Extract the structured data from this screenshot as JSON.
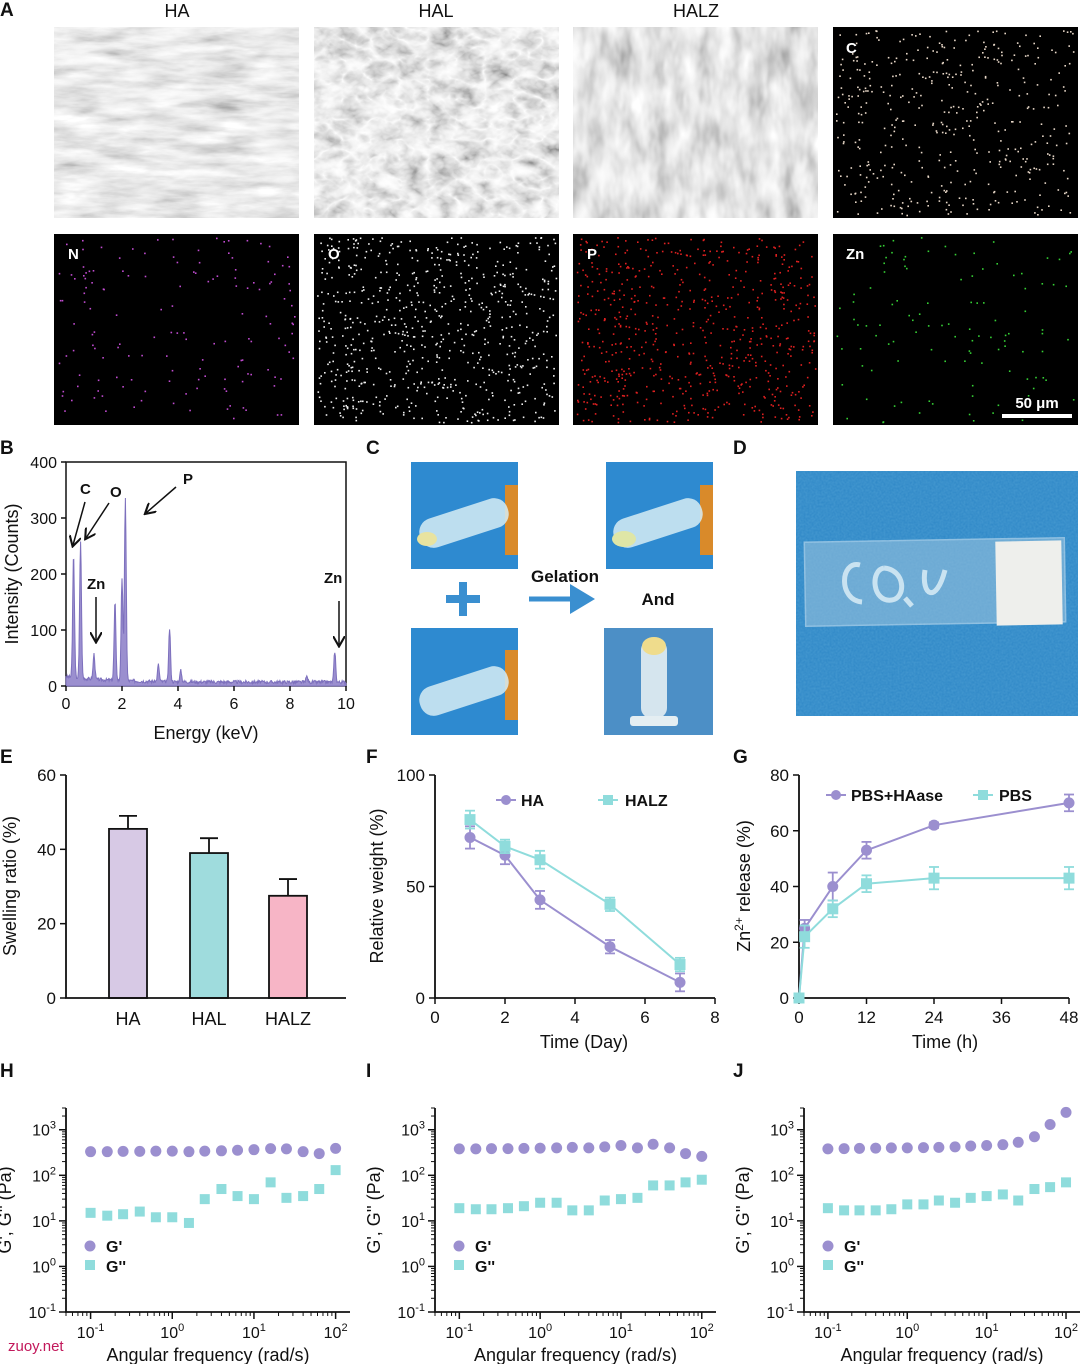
{
  "panel_letters": [
    "A",
    "B",
    "C",
    "D",
    "E",
    "F",
    "G",
    "H",
    "I",
    "J"
  ],
  "sem": {
    "col_titles": [
      "HA",
      "HAL",
      "HALZ"
    ],
    "map_labels": [
      "C",
      "N",
      "O",
      "P",
      "Zn"
    ],
    "scale_bar": "50 μm"
  },
  "colors": {
    "purple": "#9b8fcf",
    "teal": "#8fdcdc",
    "pink": "#f5b7c8",
    "bar_HA": "#d7c9e5",
    "bar_HAL": "#9fdcdd",
    "bar_HALZ": "#f7b5c6",
    "blue_bg": "#2d86c6"
  },
  "photo_c": {
    "arrow_text": "Gelation",
    "and_text": "And"
  },
  "watermark": "zuoy.net",
  "chart_data": [
    {
      "panel": "B",
      "type": "line",
      "xlabel": "Energy (keV)",
      "ylabel": "Intensity (Counts)",
      "xlim": [
        0,
        10
      ],
      "ylim": [
        0,
        400
      ],
      "xticks": [
        "0",
        "2",
        "4",
        "6",
        "8",
        "10"
      ],
      "yticks": [
        "0",
        "100",
        "200",
        "300",
        "400"
      ],
      "annotations": [
        "C",
        "O",
        "P",
        "Zn",
        "Zn"
      ],
      "peaks": [
        {
          "x": 0.27,
          "y": 220
        },
        {
          "x": 0.52,
          "y": 245
        },
        {
          "x": 1.0,
          "y": 45
        },
        {
          "x": 1.75,
          "y": 140
        },
        {
          "x": 2.0,
          "y": 180
        },
        {
          "x": 2.12,
          "y": 325
        },
        {
          "x": 3.3,
          "y": 30
        },
        {
          "x": 3.7,
          "y": 95
        },
        {
          "x": 4.1,
          "y": 20
        },
        {
          "x": 8.6,
          "y": 10
        },
        {
          "x": 9.6,
          "y": 55
        }
      ]
    },
    {
      "panel": "E",
      "type": "bar",
      "ylabel": "Swelling ratio (%)",
      "ylim": [
        0,
        60
      ],
      "yticks": [
        "0",
        "20",
        "40",
        "60"
      ],
      "categories": [
        "HA",
        "HAL",
        "HALZ"
      ],
      "values": [
        45.5,
        39,
        27.5
      ],
      "errors": [
        3.5,
        4,
        4.5
      ]
    },
    {
      "panel": "F",
      "type": "line",
      "xlabel": "Time (Day)",
      "ylabel": "Relative weight (%)",
      "xlim": [
        0,
        8
      ],
      "ylim": [
        0,
        100
      ],
      "xticks": [
        "0",
        "2",
        "4",
        "6",
        "8"
      ],
      "yticks": [
        "0",
        "50",
        "100"
      ],
      "series": [
        {
          "name": "HA",
          "x": [
            1,
            2,
            3,
            5,
            7
          ],
          "y": [
            72,
            64,
            44,
            23,
            7
          ],
          "err": [
            5,
            4,
            4,
            3,
            4
          ]
        },
        {
          "name": "HALZ",
          "x": [
            1,
            2,
            3,
            5,
            7
          ],
          "y": [
            80,
            68,
            62,
            42,
            15
          ],
          "err": [
            4,
            3,
            4,
            3,
            3
          ]
        }
      ]
    },
    {
      "panel": "G",
      "type": "line",
      "xlabel": "Time (h)",
      "ylabel": "Zn2+ release (%)",
      "xlim": [
        0,
        48
      ],
      "ylim": [
        0,
        80
      ],
      "xticks": [
        "0",
        "12",
        "24",
        "36",
        "48"
      ],
      "yticks": [
        "0",
        "20",
        "40",
        "60",
        "80"
      ],
      "series": [
        {
          "name": "PBS+HAase",
          "x": [
            0,
            1,
            6,
            12,
            24,
            48
          ],
          "y": [
            0,
            25,
            40,
            53,
            62,
            70
          ],
          "err": [
            0,
            3,
            5,
            3,
            1,
            3
          ]
        },
        {
          "name": "PBS",
          "x": [
            0,
            1,
            6,
            12,
            24,
            48
          ],
          "y": [
            0,
            22,
            32,
            41,
            43,
            43
          ],
          "err": [
            0,
            4,
            3,
            3,
            4,
            4
          ]
        }
      ]
    },
    {
      "panel": "H",
      "type": "scatter",
      "log": true,
      "xlabel": "Angular frequency (rad/s)",
      "ylabel": "G', G'' (Pa)",
      "xlim": [
        0.05,
        150
      ],
      "ylim": [
        0.1,
        3000
      ],
      "yticks": [
        "10^-1",
        "10^0",
        "10^1",
        "10^2",
        "10^3"
      ],
      "xticks": [
        "10^-1",
        "10^0",
        "10^1",
        "10^2"
      ],
      "series": [
        {
          "name": "G'",
          "x": [
            0.1,
            0.16,
            0.25,
            0.4,
            0.63,
            1,
            1.6,
            2.5,
            4,
            6.3,
            10,
            16,
            25,
            40,
            63,
            100
          ],
          "y": [
            330,
            330,
            335,
            335,
            340,
            340,
            330,
            340,
            345,
            355,
            365,
            385,
            380,
            330,
            300,
            390
          ]
        },
        {
          "name": "G''",
          "x": [
            0.1,
            0.16,
            0.25,
            0.4,
            0.63,
            1,
            1.6,
            2.5,
            4,
            6.3,
            10,
            16,
            25,
            40,
            63,
            100
          ],
          "y": [
            15,
            13,
            14,
            16,
            12,
            12,
            9,
            30,
            50,
            35,
            30,
            70,
            32,
            35,
            50,
            130
          ]
        }
      ]
    },
    {
      "panel": "I",
      "type": "scatter",
      "log": true,
      "xlabel": "Angular frequency (rad/s)",
      "ylabel": "G', G'' (Pa)",
      "xlim": [
        0.05,
        150
      ],
      "ylim": [
        0.1,
        3000
      ],
      "yticks": [
        "10^-1",
        "10^0",
        "10^1",
        "10^2",
        "10^3"
      ],
      "xticks": [
        "10^-1",
        "10^0",
        "10^1",
        "10^2"
      ],
      "series": [
        {
          "name": "G'",
          "x": [
            0.1,
            0.16,
            0.25,
            0.4,
            0.63,
            1,
            1.6,
            2.5,
            4,
            6.3,
            10,
            16,
            25,
            40,
            63,
            100
          ],
          "y": [
            380,
            380,
            385,
            385,
            390,
            395,
            400,
            410,
            400,
            420,
            450,
            400,
            480,
            400,
            300,
            260
          ]
        },
        {
          "name": "G''",
          "x": [
            0.1,
            0.16,
            0.25,
            0.4,
            0.63,
            1,
            1.6,
            2.5,
            4,
            6.3,
            10,
            16,
            25,
            40,
            63,
            100
          ],
          "y": [
            19,
            18,
            18,
            19,
            21,
            25,
            25,
            17,
            17,
            28,
            30,
            32,
            60,
            60,
            70,
            80
          ]
        }
      ]
    },
    {
      "panel": "J",
      "type": "scatter",
      "log": true,
      "xlabel": "Angular frequency (rad/s)",
      "ylabel": "G', G'' (Pa)",
      "xlim": [
        0.05,
        150
      ],
      "ylim": [
        0.1,
        3000
      ],
      "yticks": [
        "10^-1",
        "10^0",
        "10^1",
        "10^2",
        "10^3"
      ],
      "xticks": [
        "10^-1",
        "10^0",
        "10^1",
        "10^2"
      ],
      "series": [
        {
          "name": "G'",
          "x": [
            0.1,
            0.16,
            0.25,
            0.4,
            0.63,
            1,
            1.6,
            2.5,
            4,
            6.3,
            10,
            16,
            25,
            40,
            63,
            100
          ],
          "y": [
            380,
            385,
            390,
            395,
            400,
            400,
            405,
            410,
            420,
            440,
            450,
            470,
            530,
            700,
            1300,
            2400
          ]
        },
        {
          "name": "G''",
          "x": [
            0.1,
            0.16,
            0.25,
            0.4,
            0.63,
            1,
            1.6,
            2.5,
            4,
            6.3,
            10,
            16,
            25,
            40,
            63,
            100
          ],
          "y": [
            19,
            17,
            17,
            17,
            18,
            23,
            23,
            28,
            25,
            32,
            35,
            38,
            28,
            50,
            55,
            70
          ]
        }
      ]
    }
  ]
}
